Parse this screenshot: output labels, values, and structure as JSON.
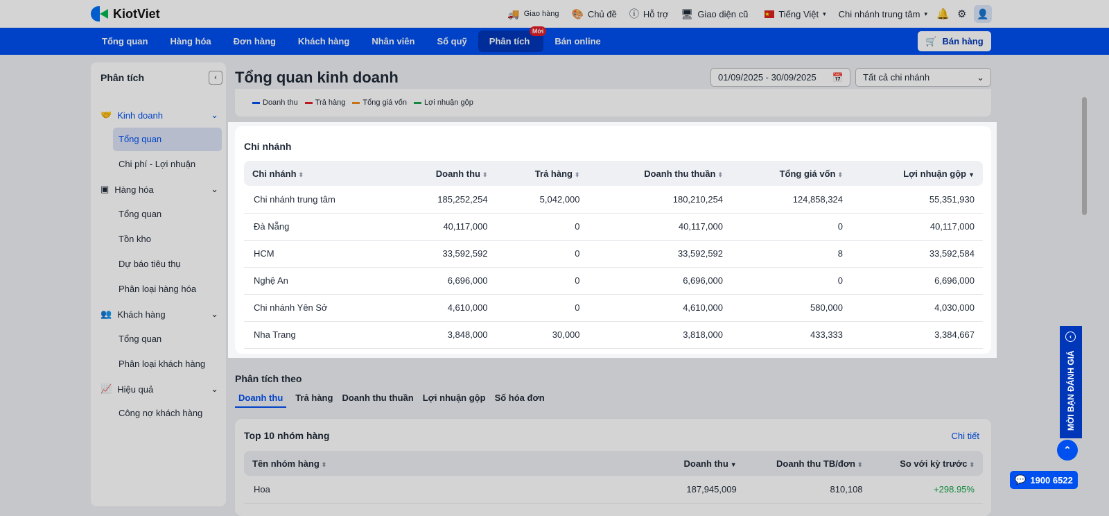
{
  "app": {
    "name": "KiotViet"
  },
  "topbar": {
    "delivery": "Giao hàng",
    "theme": "Chủ đề",
    "support": "Hỗ trợ",
    "old_ui": "Giao diện cũ",
    "language": "Tiếng Việt",
    "branch": "Chi nhánh trung tâm"
  },
  "nav": {
    "items": [
      "Tổng quan",
      "Hàng hóa",
      "Đơn hàng",
      "Khách hàng",
      "Nhân viên",
      "Sổ quỹ",
      "Phân tích",
      "Bán online"
    ],
    "new_badge": "Mới",
    "sell": "Bán hàng"
  },
  "sidebar": {
    "title": "Phân tích",
    "groups": [
      {
        "label": "Kinh doanh",
        "items": [
          "Tổng quan",
          "Chi phí - Lợi nhuận"
        ]
      },
      {
        "label": "Hàng hóa",
        "items": [
          "Tổng quan",
          "Tồn kho",
          "Dự báo tiêu thụ",
          "Phân loại hàng hóa"
        ]
      },
      {
        "label": "Khách hàng",
        "items": [
          "Tổng quan",
          "Phân loại khách hàng"
        ]
      },
      {
        "label": "Hiệu quả",
        "items": [
          "Công nợ khách hàng"
        ]
      }
    ]
  },
  "page": {
    "title": "Tổng quan kinh doanh",
    "date_range": "01/09/2025 - 30/09/2025",
    "branch_filter": "Tất cả chi nhánh"
  },
  "legend": [
    {
      "label": "Doanh thu",
      "color": "#0050f0"
    },
    {
      "label": "Trả hàng",
      "color": "#e11d2a"
    },
    {
      "label": "Tổng giá vốn",
      "color": "#f08a1c"
    },
    {
      "label": "Lợi nhuận gộp",
      "color": "#16a34a"
    }
  ],
  "branch_table": {
    "title": "Chi nhánh",
    "columns": [
      "Chi nhánh",
      "Doanh thu",
      "Trả hàng",
      "Doanh thu thuần",
      "Tổng giá vốn",
      "Lợi nhuận gộp"
    ],
    "rows": [
      [
        "Chi nhánh trung tâm",
        "185,252,254",
        "5,042,000",
        "180,210,254",
        "124,858,324",
        "55,351,930"
      ],
      [
        "Đà Nẵng",
        "40,117,000",
        "0",
        "40,117,000",
        "0",
        "40,117,000"
      ],
      [
        "HCM",
        "33,592,592",
        "0",
        "33,592,592",
        "8",
        "33,592,584"
      ],
      [
        "Nghệ An",
        "6,696,000",
        "0",
        "6,696,000",
        "0",
        "6,696,000"
      ],
      [
        "Chi nhánh Yên Sở",
        "4,610,000",
        "0",
        "4,610,000",
        "580,000",
        "4,030,000"
      ],
      [
        "Nha Trang",
        "3,848,000",
        "30,000",
        "3,818,000",
        "433,333",
        "3,384,667"
      ]
    ]
  },
  "analysis": {
    "title": "Phân tích theo",
    "tabs": [
      "Doanh thu",
      "Trả hàng",
      "Doanh thu thuần",
      "Lợi nhuận gộp",
      "Số hóa đơn"
    ]
  },
  "top_groups": {
    "title": "Top 10 nhóm hàng",
    "detail": "Chi tiết",
    "columns": [
      "Tên nhóm hàng",
      "Doanh thu",
      "Doanh thu TB/đơn",
      "So với kỳ trước"
    ],
    "rows": [
      [
        "Hoa",
        "187,945,009",
        "810,108",
        "+298.95%"
      ]
    ]
  },
  "widgets": {
    "review": "MỜI BẠN ĐÁNH GIÁ",
    "hotline": "1900 6522"
  }
}
